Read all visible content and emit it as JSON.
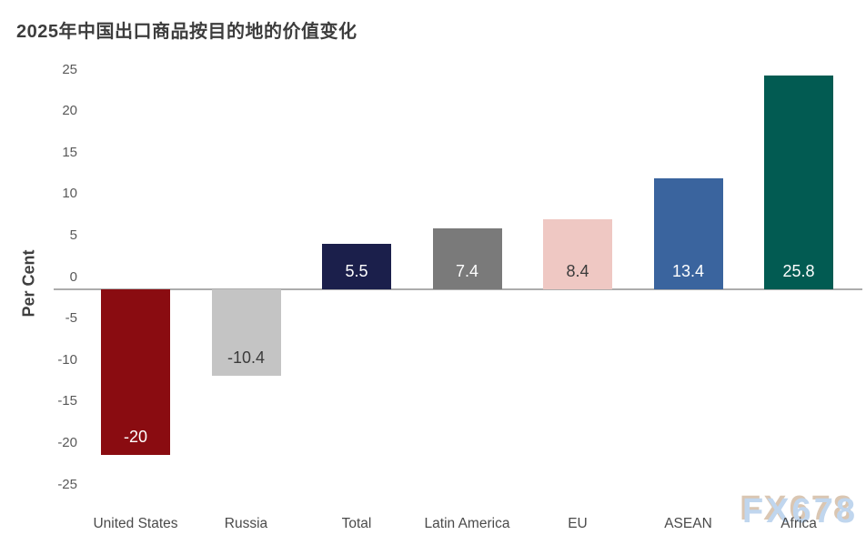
{
  "title": "2025年中国出口商品按目的地的价值变化",
  "watermark": "FX678",
  "chart_data": {
    "type": "bar",
    "title": "2025年中国出口商品按目的地的价值变化",
    "xlabel": "",
    "ylabel": "Per Cent",
    "categories": [
      "United States",
      "Russia",
      "Total",
      "Latin America",
      "EU",
      "ASEAN",
      "Africa"
    ],
    "values": [
      -20,
      -10.4,
      5.5,
      7.4,
      8.4,
      13.4,
      25.8
    ],
    "value_labels": [
      "-20",
      "-10.4",
      "5.5",
      "7.4",
      "8.4",
      "13.4",
      "25.8"
    ],
    "bar_colors": [
      "#8a0c11",
      "#c4c4c4",
      "#1b1f4b",
      "#7a7a7a",
      "#efc8c3",
      "#3a649e",
      "#025b52"
    ],
    "value_label_colors": [
      "#ffffff",
      "#3b3b3b",
      "#ffffff",
      "#ffffff",
      "#3b3b3b",
      "#ffffff",
      "#ffffff"
    ],
    "ylim": [
      -25,
      25
    ],
    "yticks": [
      25,
      20,
      15,
      10,
      5,
      0,
      -5,
      -10,
      -15,
      -20,
      -25
    ],
    "grid": false,
    "legend_position": "none"
  },
  "colors": {
    "axis_line": "#acacac",
    "title_text": "#3d3d3d",
    "tick_text": "#595959",
    "x_label_text": "#4a4a4a",
    "watermark_blue": "#bdd4ee",
    "watermark_tan": "#d9c4ae"
  }
}
